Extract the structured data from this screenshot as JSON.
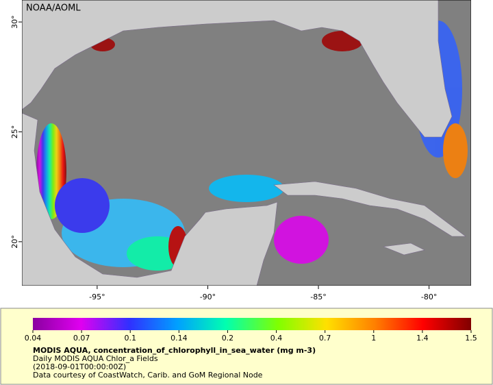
{
  "map": {
    "credit": "NOAA/AOML",
    "lonlim": [
      -98.4,
      -78.1
    ],
    "latlim": [
      18,
      31
    ],
    "lon_ticks": [
      {
        "value": -95,
        "label": "-95°"
      },
      {
        "value": -90,
        "label": "-90°"
      },
      {
        "value": -85,
        "label": "-85°"
      },
      {
        "value": -80,
        "label": "-80°"
      }
    ],
    "lat_ticks": [
      {
        "value": 30,
        "label": "30°"
      },
      {
        "value": 25,
        "label": "25°"
      },
      {
        "value": 20,
        "label": "20°"
      }
    ]
  },
  "colorbar": {
    "ticks": [
      0.04,
      0.07,
      0.1,
      0.14,
      0.2,
      0.4,
      0.7,
      1,
      1.4,
      1.5
    ]
  },
  "caption": {
    "title": "MODIS AQUA, concentration_of_chlorophyll_in_sea_water (mg m-3)",
    "lines": [
      "Daily MODIS AQUA Chlor_a Fields",
      "(2018-09-01T00:00:00Z)",
      "Data courtesy of CoastWatch, Carib. and GoM Regional Node"
    ]
  }
}
